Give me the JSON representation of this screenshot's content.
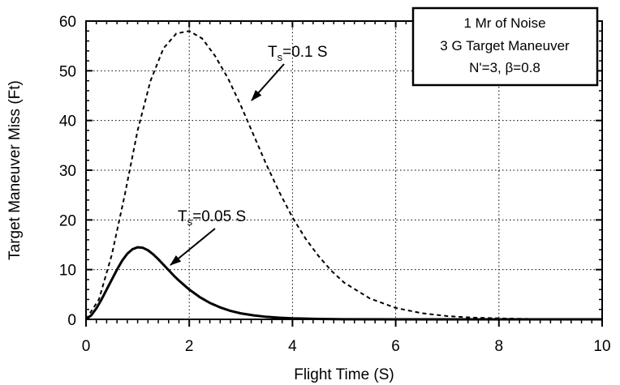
{
  "chart_data": {
    "type": "line",
    "xlabel": "Flight Time (S)",
    "ylabel": "Target Maneuver Miss (Ft)",
    "xlim": [
      0,
      10
    ],
    "ylim": [
      0,
      60
    ],
    "x_ticks": [
      "0",
      "2",
      "4",
      "6",
      "8",
      "10"
    ],
    "y_ticks": [
      "0",
      "10",
      "20",
      "30",
      "40",
      "50",
      "60"
    ],
    "grid": true,
    "legend_box": {
      "lines": [
        "1 Mr of Noise",
        "3 G Target Maneuver",
        "N'=3, β=0.8"
      ],
      "placement": "top-right"
    },
    "series": [
      {
        "style": "dashed",
        "color": "#000000",
        "x": [
          0,
          0.25,
          0.5,
          0.75,
          1.0,
          1.25,
          1.5,
          1.75,
          2.0,
          2.25,
          2.5,
          2.75,
          3.0,
          3.25,
          3.5,
          3.75,
          4.0,
          4.25,
          4.5,
          4.75,
          5.0,
          5.5,
          6.0,
          6.5,
          7.0,
          7.5,
          8.0,
          8.5,
          9.0,
          9.5,
          10.0
        ],
        "y": [
          0,
          4,
          13,
          25,
          38,
          48,
          54.5,
          57.5,
          58,
          56.5,
          53,
          48.5,
          43,
          37,
          31,
          25.5,
          20.5,
          16.3,
          12.8,
          9.8,
          7.4,
          4.2,
          2.3,
          1.25,
          0.65,
          0.35,
          0.2,
          0.1,
          0.05,
          0.02,
          0
        ]
      },
      {
        "style": "solid",
        "color": "#000000",
        "x": [
          0,
          0.1,
          0.2,
          0.3,
          0.4,
          0.5,
          0.6,
          0.7,
          0.8,
          0.9,
          1.0,
          1.1,
          1.2,
          1.3,
          1.4,
          1.5,
          1.6,
          1.7,
          1.8,
          1.9,
          2.0,
          2.2,
          2.4,
          2.6,
          2.8,
          3.0,
          3.25,
          3.5,
          3.75,
          4.0,
          4.5,
          5.0,
          6.0,
          7.0,
          8.0,
          10.0
        ],
        "y": [
          0,
          0.8,
          2.2,
          4.0,
          6.0,
          8.0,
          10.0,
          11.8,
          13.2,
          14.1,
          14.5,
          14.4,
          13.9,
          13.1,
          12.1,
          11.0,
          9.9,
          8.8,
          7.8,
          6.9,
          6.0,
          4.5,
          3.3,
          2.4,
          1.7,
          1.2,
          0.8,
          0.5,
          0.32,
          0.2,
          0.08,
          0.03,
          0,
          0,
          0,
          0
        ]
      }
    ],
    "annotations": [
      {
        "base": "T",
        "sub": "s",
        "text": "=0.1 S",
        "arrow_to_x": 3.2,
        "arrow_to_y": 44.5
      },
      {
        "base": "T",
        "sub": "s",
        "text": "=0.05 S",
        "arrow_to_x": 1.6,
        "arrow_to_y": 10.5
      }
    ]
  }
}
